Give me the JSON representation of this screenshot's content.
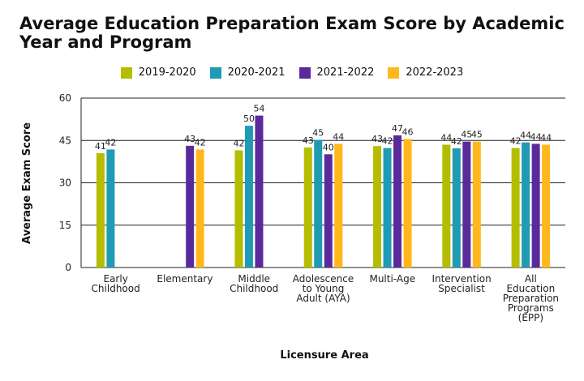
{
  "chart_data": {
    "type": "bar",
    "title": "Average Education Preparation Exam Score by Academic Year and Program",
    "xlabel": "Licensure Area",
    "ylabel": "Average Exam Score",
    "ylim": [
      0,
      60
    ],
    "yticks": [
      0,
      15,
      30,
      45,
      60
    ],
    "grid": true,
    "legend_position": "top",
    "categories": [
      [
        "Early",
        "Childhood"
      ],
      [
        "Elementary"
      ],
      [
        "Middle",
        "Childhood"
      ],
      [
        "Adolescence",
        "to Young",
        "Adult (AYA)"
      ],
      [
        "Multi-Age"
      ],
      [
        "Intervention",
        "Specialist"
      ],
      [
        "All",
        "Education",
        "Preparation",
        "Programs",
        "(EPP)"
      ]
    ],
    "series": [
      {
        "name": "2019-2020",
        "color": "#b5bd00",
        "values": [
          40.5,
          null,
          41.5,
          42.5,
          43,
          43.5,
          42.3
        ],
        "labels": [
          "41",
          null,
          "42",
          "43",
          "43",
          "44",
          "42"
        ]
      },
      {
        "name": "2020-2021",
        "color": "#1f9bb4",
        "values": [
          41.8,
          null,
          50.2,
          45.2,
          42.3,
          42.2,
          44.3
        ],
        "labels": [
          "42",
          null,
          "50",
          "45",
          "42",
          "42",
          "44"
        ]
      },
      {
        "name": "2021-2022",
        "color": "#5a2a9c",
        "values": [
          null,
          43.1,
          53.8,
          40.1,
          46.8,
          44.6,
          43.8
        ],
        "labels": [
          null,
          "43",
          "54",
          "40",
          "47",
          "45",
          "44"
        ]
      },
      {
        "name": "2022-2023",
        "color": "#ffb81c",
        "values": [
          null,
          41.8,
          null,
          43.8,
          45.5,
          44.6,
          43.5
        ],
        "labels": [
          null,
          "42",
          null,
          "44",
          "46",
          "45",
          "44"
        ]
      }
    ]
  }
}
